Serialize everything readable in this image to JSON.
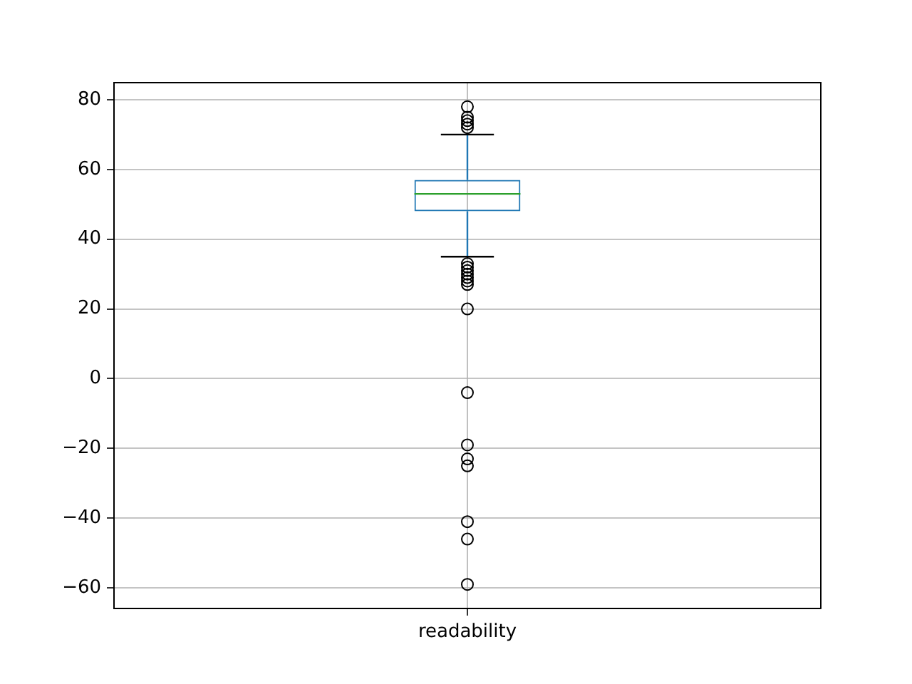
{
  "chart_data": {
    "type": "box",
    "categories": [
      "readability"
    ],
    "series": [
      {
        "color": "#1f77b4",
        "boxes": [
          {
            "low": 35,
            "q1": 48,
            "median": 53,
            "q3": 57,
            "high": 70,
            "outliers": [
              78,
              75,
              74,
              73,
              72,
              33,
              32,
              31,
              30,
              29,
              28,
              27,
              20,
              -4,
              -19,
              -23,
              -25,
              -41,
              -46,
              -59
            ]
          }
        ]
      }
    ],
    "ylim": [
      -65.9,
      84.9
    ],
    "yticks": [
      {
        "value": -60,
        "label": "−60"
      },
      {
        "value": -40,
        "label": "−40"
      },
      {
        "value": -20,
        "label": "−20"
      },
      0,
      20,
      40,
      60,
      80
    ],
    "grid": true,
    "marker": "circle"
  }
}
